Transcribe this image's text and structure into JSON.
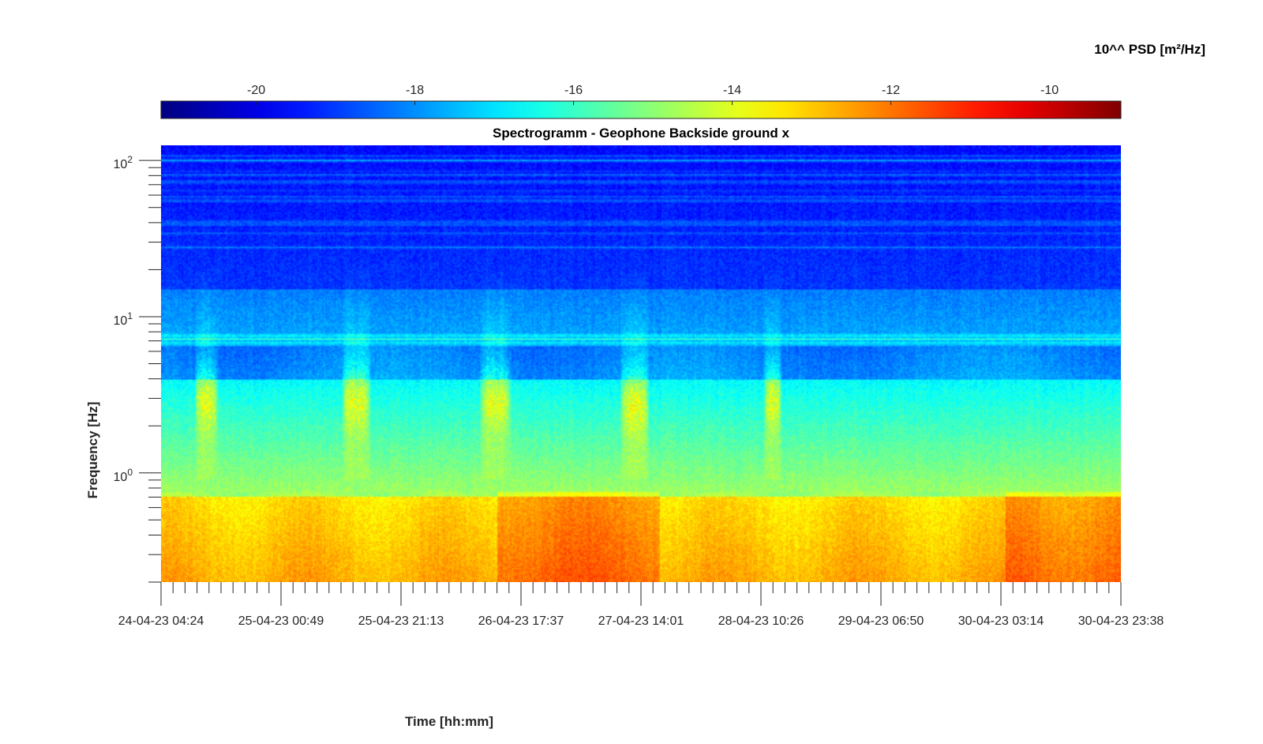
{
  "chart_data": {
    "type": "heatmap",
    "title": "Spectrogramm - Geophone Backside ground x",
    "xlabel": "Time [hh:mm]",
    "ylabel": "Frequency [Hz]",
    "yscale": "log",
    "ylim": [
      0.2,
      125
    ],
    "y_tick_labels": [
      {
        "base": "10",
        "exp": "0",
        "value": 1
      },
      {
        "base": "10",
        "exp": "1",
        "value": 10
      },
      {
        "base": "10",
        "exp": "2",
        "value": 100
      }
    ],
    "x_tick_labels": [
      "24-04-23 04:24",
      "25-04-23 00:49",
      "25-04-23 21:13",
      "26-04-23 17:37",
      "27-04-23 14:01",
      "28-04-23 10:26",
      "29-04-23 06:50",
      "30-04-23 03:14",
      "30-04-23 23:38"
    ],
    "colorbar": {
      "label": "10^^ PSD [m²/Hz]",
      "range": [
        -21.2,
        -9.1
      ],
      "ticks": [
        -20,
        -18,
        -16,
        -14,
        -12,
        -10
      ],
      "colormap": "jet"
    },
    "activity_bursts": [
      {
        "start": "24-04-23 10:00",
        "end": "24-04-23 14:00",
        "peak_freq_hz": 3.0
      },
      {
        "start": "25-04-23 11:00",
        "end": "25-04-23 16:00",
        "peak_freq_hz": 3.0
      },
      {
        "start": "26-04-23 10:30",
        "end": "26-04-23 16:00",
        "peak_freq_hz": 3.0
      },
      {
        "start": "27-04-23 10:30",
        "end": "27-04-23 15:30",
        "peak_freq_hz": 2.8
      },
      {
        "start": "28-04-23 11:00",
        "end": "28-04-23 14:00",
        "peak_freq_hz": 3.0
      }
    ]
  }
}
